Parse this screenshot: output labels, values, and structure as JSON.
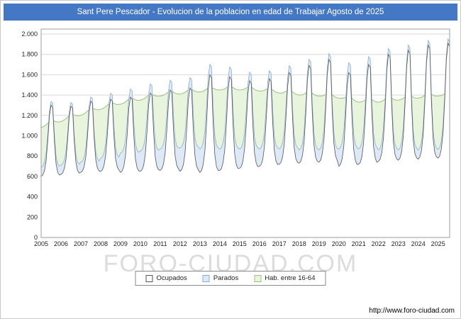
{
  "header": {
    "title": "Sant Pere Pescador - Evolucion de la poblacion en edad de Trabajar Agosto de 2025",
    "bar_color": "#4478c4"
  },
  "watermark": {
    "text": "FORO-CIUDAD.COM"
  },
  "footer": {
    "url": "http://www.foro-ciudad.com"
  },
  "chart_data": {
    "type": "area",
    "title": "Sant Pere Pescador - Evolucion de la poblacion en edad de Trabajar Agosto de 2025",
    "granularity": "monthly",
    "x_start": "2005-01",
    "x_end": "2025-08",
    "n_points": 248,
    "years": [
      "2005",
      "2006",
      "2007",
      "2008",
      "2009",
      "2010",
      "2011",
      "2012",
      "2013",
      "2014",
      "2015",
      "2016",
      "2017",
      "2018",
      "2019",
      "2020",
      "2021",
      "2022",
      "2023",
      "2024",
      "2025"
    ],
    "y_ticks": [
      "0",
      "200",
      "400",
      "600",
      "800",
      "1.000",
      "1.200",
      "1.400",
      "1.600",
      "1.800",
      "2.000"
    ],
    "ylim": [
      0,
      2050
    ],
    "grid": true,
    "legend_position": "bottom",
    "legend": [
      {
        "label": "Ocupados",
        "fill": "#ffffff",
        "stroke": "#555555"
      },
      {
        "label": "Parados",
        "fill": "#dde9f6",
        "stroke": "#88aed3"
      },
      {
        "label": "Hab. entre 16-64",
        "fill": "#e9f4dd",
        "stroke": "#9cbf7d"
      }
    ],
    "seasonal_profile": {
      "ocupados": [
        0,
        0.02,
        0.08,
        0.22,
        0.5,
        0.85,
        1.0,
        0.97,
        0.5,
        0.18,
        0.06,
        0.02
      ],
      "parados": [
        1.0,
        0.97,
        0.9,
        0.7,
        0.45,
        0.2,
        0.05,
        0.08,
        0.38,
        0.66,
        0.85,
        0.95
      ],
      "hab": [
        0,
        0.05,
        0.15,
        0.35,
        0.65,
        0.9,
        1.0,
        1.0,
        0.7,
        0.4,
        0.15,
        0.05
      ]
    },
    "series": {
      "ocupados": {
        "name": "Ocupados",
        "trough_by_year": [
          600,
          620,
          640,
          650,
          640,
          650,
          660,
          650,
          640,
          660,
          680,
          700,
          720,
          730,
          740,
          700,
          720,
          750,
          760,
          770,
          780
        ],
        "peak_by_year": [
          1300,
          1290,
          1340,
          1360,
          1380,
          1420,
          1450,
          1470,
          1600,
          1580,
          1540,
          1560,
          1620,
          1690,
          1750,
          1620,
          1700,
          1800,
          1840,
          1890,
          1910
        ]
      },
      "parados": {
        "name": "Parados",
        "winter_by_year": [
          90,
          90,
          100,
          130,
          190,
          200,
          210,
          230,
          230,
          210,
          190,
          170,
          150,
          130,
          120,
          170,
          150,
          110,
          100,
          90,
          85
        ],
        "summer_by_year": [
          35,
          35,
          40,
          55,
          75,
          85,
          90,
          95,
          95,
          90,
          80,
          75,
          65,
          60,
          55,
          95,
          75,
          55,
          50,
          45,
          40
        ]
      },
      "hab_16_64": {
        "name": "Hab. entre 16-64",
        "jan_by_year": [
          1080,
          1140,
          1200,
          1260,
          1310,
          1350,
          1390,
          1410,
          1430,
          1450,
          1450,
          1440,
          1420,
          1400,
          1390,
          1370,
          1330,
          1330,
          1350,
          1370,
          1390
        ],
        "seasonal_bump": 35
      }
    }
  }
}
